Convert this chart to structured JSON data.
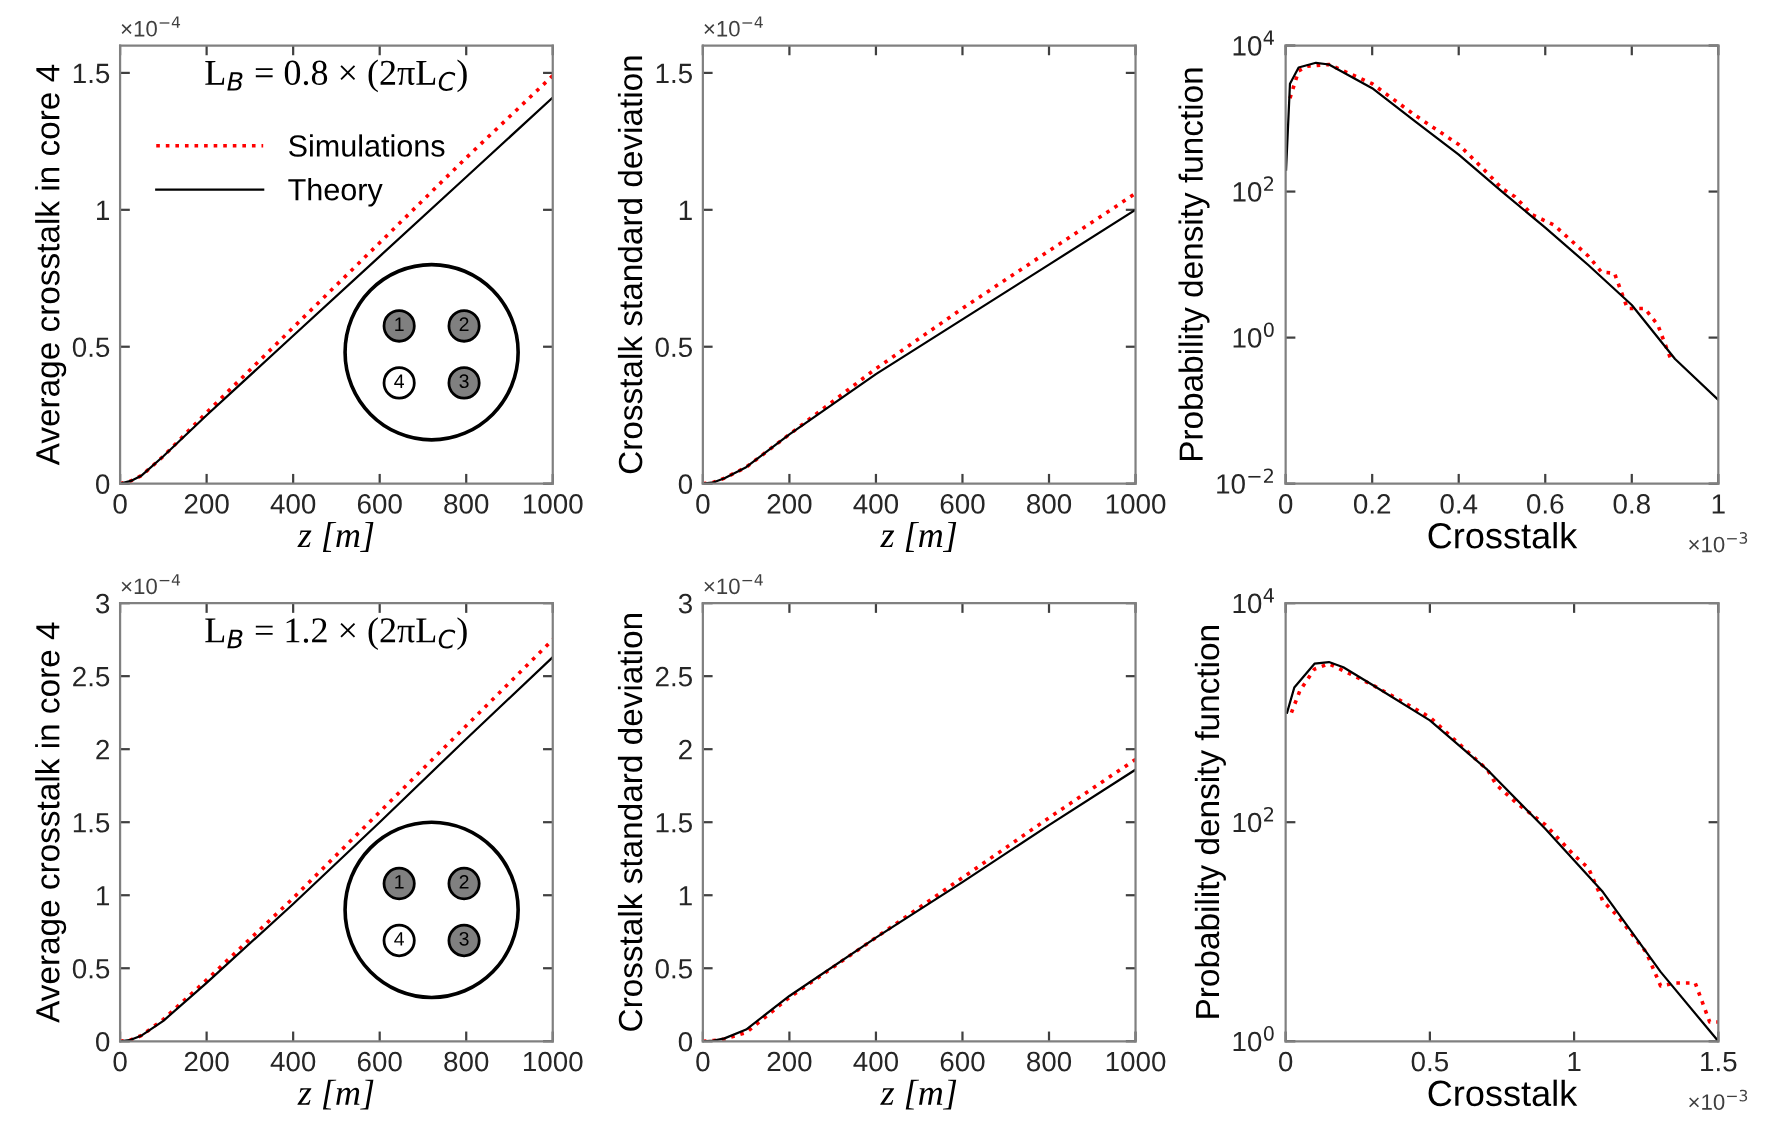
{
  "chart_data": [
    {
      "type": "line",
      "xlabel": "z [m]",
      "ylabel": "Average crosstalk in core 4",
      "x": [
        0,
        25,
        50,
        100,
        200,
        400,
        600,
        800,
        1000
      ],
      "xlim": [
        0,
        1000
      ],
      "xticks": [
        0,
        200,
        400,
        600,
        800,
        1000
      ],
      "ylim": [
        0,
        1.6
      ],
      "yticks": [
        0,
        0.5,
        1,
        1.5
      ],
      "grid": false,
      "legend": "top left",
      "marker": "none",
      "annotations": [
        "×10$^{−4}$",
        "L$_{B}$ = 0.8 × (2πL$_{C}$)",
        "1",
        "2",
        "3",
        "4"
      ],
      "series": [
        {
          "name": "Simulations",
          "color": "#ff0000",
          "line_style": "dotted",
          "values": [
            0,
            0.01,
            0.03,
            0.1,
            0.26,
            0.57,
            0.88,
            1.19,
            1.49
          ]
        },
        {
          "name": "Theory",
          "color": "#000000",
          "line_style": "solid",
          "values": [
            0,
            0.01,
            0.03,
            0.1,
            0.25,
            0.54,
            0.83,
            1.12,
            1.41
          ]
        }
      ]
    },
    {
      "type": "line",
      "xlabel": "z [m]",
      "ylabel": "Crosstalk standard deviation",
      "x": [
        0,
        25,
        50,
        100,
        200,
        400,
        600,
        800,
        1000
      ],
      "xlim": [
        0,
        1000
      ],
      "xticks": [
        0,
        200,
        400,
        600,
        800,
        1000
      ],
      "ylim": [
        0,
        1.6
      ],
      "yticks": [
        0,
        0.5,
        1,
        1.5
      ],
      "grid": false,
      "legend": false,
      "marker": "none",
      "annotations": [
        "×10$^{−4}$"
      ],
      "series": [
        {
          "color": "#ff0000",
          "line_style": "dotted",
          "values": [
            0,
            0.005,
            0.02,
            0.06,
            0.18,
            0.42,
            0.64,
            0.85,
            1.06
          ]
        },
        {
          "color": "#000000",
          "line_style": "solid",
          "values": [
            0,
            0.005,
            0.02,
            0.06,
            0.18,
            0.4,
            0.6,
            0.8,
            1.0
          ]
        }
      ]
    },
    {
      "type": "line",
      "xlabel": "Crosstalk",
      "ylabel": "Probability density function",
      "log": "y",
      "xlim": [
        0,
        1
      ],
      "xticks": [
        0,
        0.2,
        0.4,
        0.6,
        0.8,
        1
      ],
      "ylim": [
        0.01,
        10000
      ],
      "yticks": [
        {
          "value": 0.01,
          "label": "10$^{−2}$"
        },
        {
          "value": 1,
          "label": "10$^{0}$"
        },
        {
          "value": 100,
          "label": "10$^{2}$"
        },
        {
          "value": 10000,
          "label": "10$^{4}$"
        }
      ],
      "grid": false,
      "legend": false,
      "marker": "none",
      "annotations": [
        "×10$^{−3}$"
      ],
      "series": [
        {
          "color": "#ff0000",
          "line_style": "dotted",
          "x": [
            0.01,
            0.03,
            0.05,
            0.1,
            0.2,
            0.3,
            0.4,
            0.47,
            0.5,
            0.53,
            0.57,
            0.62,
            0.7,
            0.73,
            0.76,
            0.79,
            0.83,
            0.86,
            0.89
          ],
          "values": [
            1900,
            4500,
            5200,
            5500,
            3000,
            1100,
            440,
            170,
            110,
            85,
            48,
            35,
            13,
            7.9,
            7.6,
            2.5,
            2.5,
            1.5,
            0.51
          ]
        },
        {
          "color": "#000000",
          "line_style": "solid",
          "x": [
            0.001,
            0.01,
            0.03,
            0.07,
            0.1,
            0.2,
            0.3,
            0.4,
            0.5,
            0.6,
            0.7,
            0.8,
            0.9,
            1.0
          ],
          "values": [
            200,
            3000,
            5000,
            5800,
            5500,
            2600,
            910,
            320,
            100,
            32,
            9.8,
            2.8,
            0.51,
            0.14
          ]
        }
      ]
    },
    {
      "type": "line",
      "xlabel": "z [m]",
      "ylabel": "Average crosstalk in core 4",
      "x": [
        0,
        25,
        50,
        100,
        200,
        400,
        600,
        800,
        1000
      ],
      "xlim": [
        0,
        1000
      ],
      "xticks": [
        0,
        200,
        400,
        600,
        800,
        1000
      ],
      "ylim": [
        0,
        3
      ],
      "yticks": [
        0,
        0.5,
        1,
        1.5,
        2,
        2.5,
        3
      ],
      "grid": false,
      "legend": false,
      "marker": "none",
      "annotations": [
        "×10$^{−4}$",
        "L$_{B}$ = 1.2 × (2πL$_{C}$)",
        "1",
        "2",
        "3",
        "4"
      ],
      "series": [
        {
          "color": "#ff0000",
          "line_style": "dotted",
          "values": [
            0,
            0.01,
            0.04,
            0.15,
            0.42,
            0.98,
            1.57,
            2.16,
            2.75
          ]
        },
        {
          "color": "#000000",
          "line_style": "solid",
          "values": [
            0,
            0.01,
            0.04,
            0.14,
            0.4,
            0.94,
            1.5,
            2.07,
            2.63
          ]
        }
      ]
    },
    {
      "type": "line",
      "xlabel": "z [m]",
      "ylabel": "Crosstalk standard deviation",
      "x": [
        0,
        25,
        50,
        100,
        200,
        400,
        600,
        800,
        1000
      ],
      "xlim": [
        0,
        1000
      ],
      "xticks": [
        0,
        200,
        400,
        600,
        800,
        1000
      ],
      "ylim": [
        0,
        3
      ],
      "yticks": [
        0,
        0.5,
        1,
        1.5,
        2,
        2.5,
        3
      ],
      "grid": false,
      "legend": false,
      "marker": "none",
      "annotations": [
        "×10$^{−4}$"
      ],
      "series": [
        {
          "color": "#ff0000",
          "line_style": "dotted",
          "values": [
            0,
            0.005,
            0.015,
            0.06,
            0.3,
            0.71,
            1.12,
            1.53,
            1.93
          ]
        },
        {
          "color": "#000000",
          "line_style": "solid",
          "values": [
            0,
            0.005,
            0.02,
            0.08,
            0.31,
            0.71,
            1.09,
            1.48,
            1.86
          ]
        }
      ]
    },
    {
      "type": "line",
      "xlabel": "Crosstalk",
      "ylabel": "Probability density function",
      "log": "y",
      "xlim": [
        0,
        1.5
      ],
      "xticks": [
        0,
        0.5,
        1,
        1.5
      ],
      "ylim": [
        1,
        10000
      ],
      "yticks": [
        {
          "value": 1,
          "label": "10$^{0}$"
        },
        {
          "value": 100,
          "label": "10$^{2}$"
        },
        {
          "value": 10000,
          "label": "10$^{4}$"
        }
      ],
      "grid": false,
      "legend": false,
      "marker": "none",
      "annotations": [
        "×10$^{−3}$"
      ],
      "series": [
        {
          "color": "#ff0000",
          "line_style": "dotted",
          "x": [
            0.02,
            0.05,
            0.1,
            0.15,
            0.3,
            0.5,
            0.7,
            0.73,
            0.8,
            0.9,
            1.0,
            1.05,
            1.1,
            1.15,
            1.25,
            1.3,
            1.35,
            1.42,
            1.47,
            1.5
          ],
          "values": [
            1000,
            1600,
            2500,
            2800,
            1800,
            910,
            300,
            220,
            150,
            95,
            50,
            38,
            19,
            14,
            6.5,
            3.2,
            3.4,
            3.4,
            1.5,
            1.5
          ]
        },
        {
          "color": "#000000",
          "line_style": "solid",
          "x": [
            0.005,
            0.03,
            0.1,
            0.15,
            0.2,
            0.3,
            0.5,
            0.7,
            0.9,
            1.1,
            1.3,
            1.5
          ],
          "values": [
            1000,
            1700,
            2800,
            2900,
            2600,
            1800,
            850,
            300,
            87,
            23,
            4.3,
            1.0
          ]
        }
      ]
    }
  ]
}
